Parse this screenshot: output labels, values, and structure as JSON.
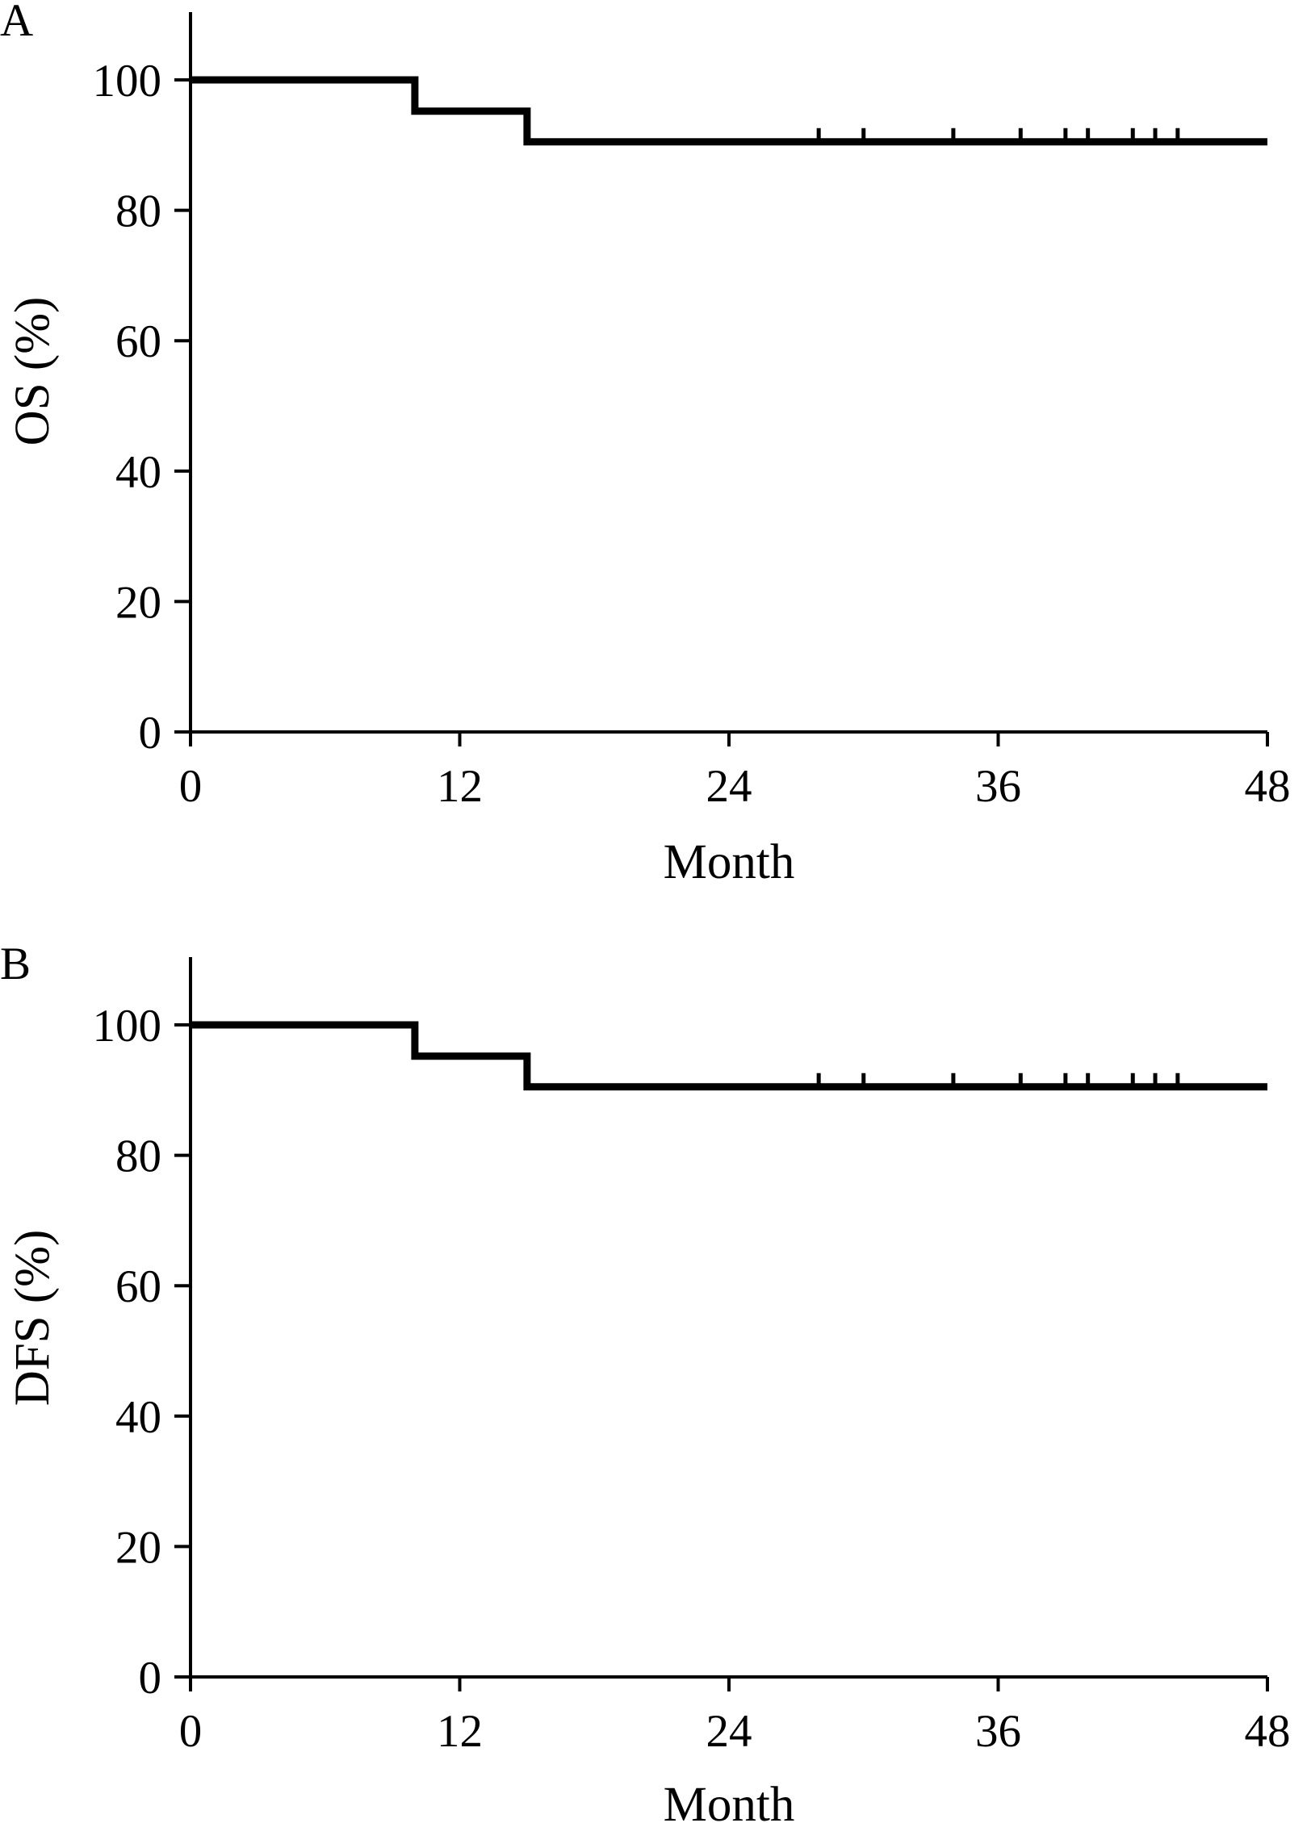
{
  "chart_data": [
    {
      "type": "line",
      "panel_label": "A",
      "xlabel": "Month",
      "ylabel": "OS (%)",
      "xlim": [
        0,
        48
      ],
      "ylim": [
        0,
        110
      ],
      "x_ticks": [
        0,
        12,
        24,
        36,
        48
      ],
      "y_ticks": [
        0,
        20,
        40,
        60,
        80,
        100
      ],
      "grid": false,
      "series": [
        {
          "step_points": [
            {
              "x": 0,
              "y": 100
            },
            {
              "x": 10,
              "y": 100
            },
            {
              "x": 10,
              "y": 95.2
            },
            {
              "x": 15,
              "y": 95.2
            },
            {
              "x": 15,
              "y": 90.5
            },
            {
              "x": 48,
              "y": 90.5
            }
          ],
          "censored_x": [
            28,
            30,
            34,
            37,
            39,
            40,
            42,
            43,
            44
          ],
          "censored_y": 90.5
        }
      ]
    },
    {
      "type": "line",
      "panel_label": "B",
      "xlabel": "Month",
      "ylabel": "DFS (%)",
      "xlim": [
        0,
        48
      ],
      "ylim": [
        0,
        110
      ],
      "x_ticks": [
        0,
        12,
        24,
        36,
        48
      ],
      "y_ticks": [
        0,
        20,
        40,
        60,
        80,
        100
      ],
      "grid": false,
      "series": [
        {
          "step_points": [
            {
              "x": 0,
              "y": 100
            },
            {
              "x": 10,
              "y": 100
            },
            {
              "x": 10,
              "y": 95.2
            },
            {
              "x": 15,
              "y": 95.2
            },
            {
              "x": 15,
              "y": 90.5
            },
            {
              "x": 48,
              "y": 90.5
            }
          ],
          "censored_x": [
            28,
            30,
            34,
            37,
            39,
            40,
            42,
            43,
            44
          ],
          "censored_y": 90.5
        }
      ]
    }
  ]
}
